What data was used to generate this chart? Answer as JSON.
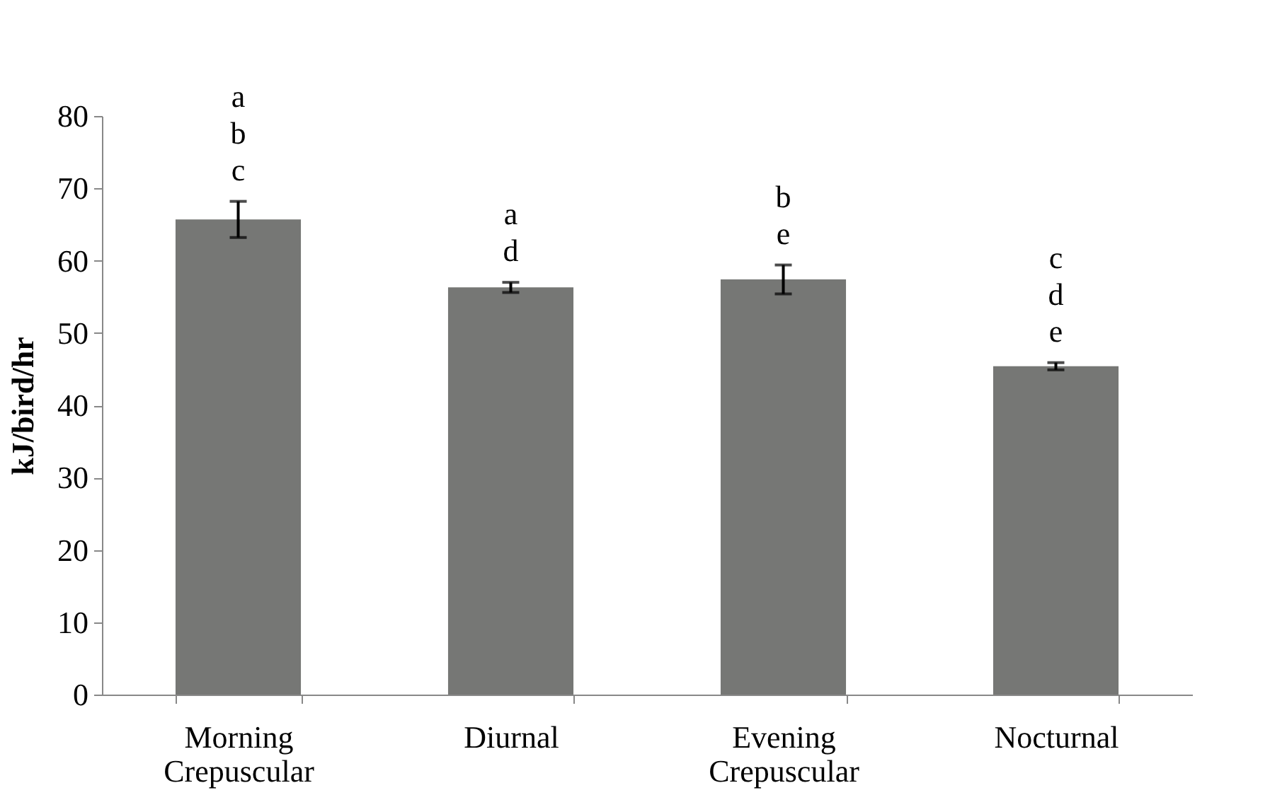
{
  "chart_data": {
    "type": "bar",
    "ylabel": "kJ/bird/hr",
    "categories": [
      "Morning Crepuscular",
      "Diurnal",
      "Evening Crepuscular",
      "Nocturnal"
    ],
    "values": [
      65.7,
      56.3,
      57.4,
      45.4
    ],
    "errors": [
      2.5,
      0.7,
      2.0,
      0.5
    ],
    "color": "#767775",
    "ylim": [
      0,
      80
    ],
    "yticks": [
      0,
      10,
      20,
      30,
      40,
      50,
      60,
      70,
      80
    ],
    "grid": false,
    "annotations": [
      {
        "text": "a b c",
        "x": "Morning Crepuscular",
        "y": 68.2
      },
      {
        "text": "a d",
        "x": "Diurnal",
        "y": 57.0
      },
      {
        "text": "b e",
        "x": "Evening Crepuscular",
        "y": 59.4
      },
      {
        "text": "c d e",
        "x": "Nocturnal",
        "y": 45.9
      }
    ]
  }
}
